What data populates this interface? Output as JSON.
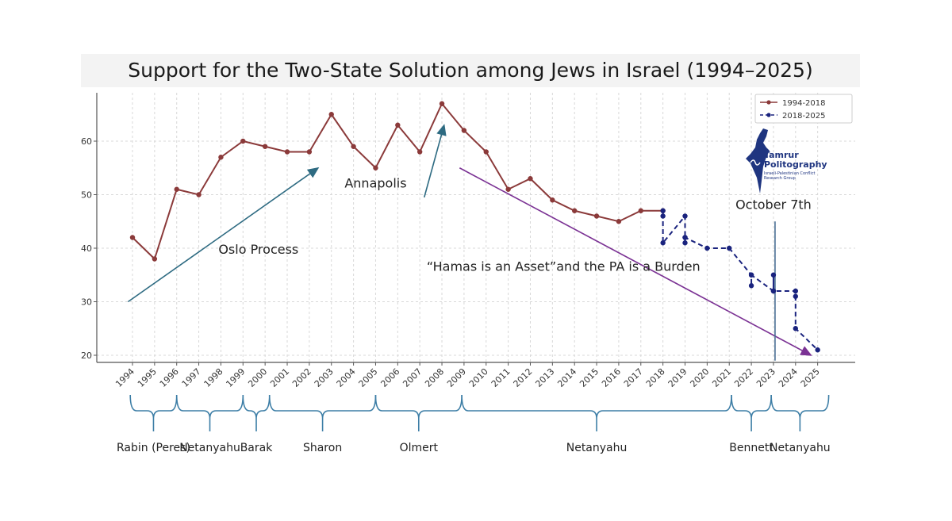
{
  "title": "Support for the Two-State Solution among Jews in Israel (1994–2025)",
  "colors": {
    "series1": "#8b3a3a",
    "series2": "#1a237e",
    "arrows": "#2e6b82",
    "trend": "#7b3294",
    "oct7": "#4a6f94",
    "brace": "#3d7ea6"
  },
  "chart_data": {
    "type": "line",
    "title": "Support for the Two-State Solution among Jews in Israel (1994–2025)",
    "xlabel": "",
    "ylabel": "",
    "xlim": [
      1993.5,
      2026.5
    ],
    "ylim": [
      19,
      71
    ],
    "yticks": [
      20,
      30,
      40,
      50,
      60
    ],
    "xticks": [
      1994,
      1995,
      1996,
      1997,
      1998,
      1999,
      2000,
      2001,
      2002,
      2003,
      2004,
      2005,
      2006,
      2007,
      2008,
      2009,
      2010,
      2011,
      2012,
      2013,
      2014,
      2015,
      2016,
      2017,
      2018,
      2019,
      2020,
      2021,
      2022,
      2023,
      2024,
      2025
    ],
    "grid": true,
    "legend_position": "top-right",
    "series": [
      {
        "name": "1994-2018",
        "style": "solid",
        "color": "#8b3a3a",
        "x": [
          1994,
          1995,
          1996,
          1997,
          1998,
          1999,
          2000,
          2001,
          2002,
          2003,
          2004,
          2005,
          2006,
          2007,
          2008,
          2009,
          2010,
          2011,
          2012,
          2013,
          2014,
          2015,
          2016,
          2017,
          2018
        ],
        "y": [
          42,
          38,
          51,
          50,
          57,
          60,
          59,
          58,
          58,
          65,
          59,
          55,
          63,
          58,
          67,
          62,
          58,
          51,
          53,
          49,
          47,
          46,
          45,
          47,
          47
        ]
      },
      {
        "name": "2018-2025",
        "style": "dashed",
        "color": "#1a237e",
        "x": [
          2018,
          2018,
          2018,
          2019,
          2019,
          2019,
          2019,
          2020,
          2021,
          2022,
          2022,
          2022,
          2023,
          2023,
          2023,
          2024,
          2024,
          2024,
          2025
        ],
        "y": [
          46,
          47,
          41,
          46,
          42,
          41,
          42,
          40,
          40,
          35,
          33,
          35,
          32,
          35,
          32,
          32,
          31,
          25,
          21
        ]
      }
    ],
    "annotations": [
      {
        "text": "Oslo Process",
        "x": 1999.7,
        "y": 39,
        "arrow_from": [
          1993.8,
          30
        ],
        "arrow_to": [
          2002.4,
          55
        ]
      },
      {
        "text": "Annapolis",
        "x": 2005.0,
        "y": 51.3,
        "arrow_from": [
          2007.2,
          49.5
        ],
        "arrow_to": [
          2008.1,
          63
        ]
      },
      {
        "text": "“Hamas is an Asset”and the PA is a Burden",
        "x": 2013.5,
        "y": 35.8,
        "line_from": [
          2008.8,
          55
        ],
        "line_to": [
          2024.7,
          20
        ]
      },
      {
        "text": "October 7th",
        "x": 2023.0,
        "y": 47.3,
        "vline_x": 2023.0,
        "vline_from": 19,
        "vline_to": 45
      }
    ],
    "periods": [
      {
        "label": "Rabin (Peres)",
        "start": 1993.9,
        "end": 1996.0
      },
      {
        "label": "Netanyahu",
        "start": 1996.0,
        "end": 1999.0
      },
      {
        "label": "Barak",
        "start": 1999.0,
        "end": 2000.2
      },
      {
        "label": "Sharon",
        "start": 2000.2,
        "end": 2005.0
      },
      {
        "label": "Olmert",
        "start": 2005.0,
        "end": 2008.9
      },
      {
        "label": "Netanyahu",
        "start": 2008.9,
        "end": 2021.1
      },
      {
        "label": "Bennett",
        "start": 2021.1,
        "end": 2022.9
      },
      {
        "label": "Netanyahu",
        "start": 2022.9,
        "end": 2025.5
      }
    ]
  },
  "logo": {
    "line1": "Tamrur",
    "line2": "Politography",
    "line3": "Israeli-Palestinian Conflict Research Group"
  }
}
